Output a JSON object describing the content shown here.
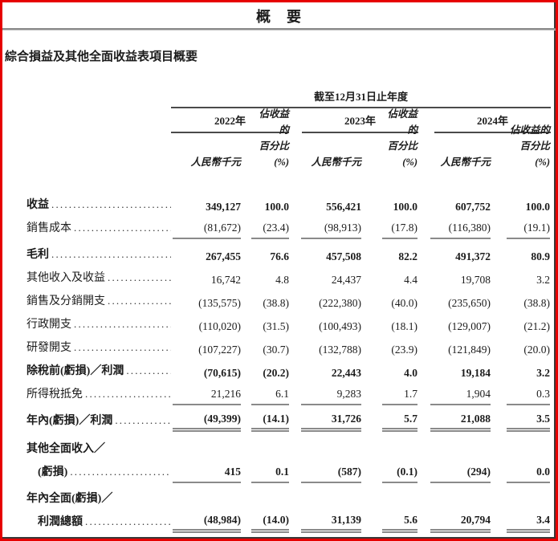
{
  "doc": {
    "title": "概　要",
    "section_heading": "綜合損益及其他全面收益表項目概要"
  },
  "table": {
    "period_header": "截至12月31日止年度",
    "years": [
      "2022年",
      "2023年",
      "2024年"
    ],
    "col_rmb": "人民幣千元",
    "col_pct_1": "佔收益的",
    "col_pct_2": "百分比(%)",
    "rows": [
      {
        "label": "收益",
        "bold": true,
        "rule": null,
        "values": [
          "349,127",
          "100.0",
          "556,421",
          "100.0",
          "607,752",
          "100.0"
        ]
      },
      {
        "label": "銷售成本",
        "bold": false,
        "rule": "single",
        "values": [
          "(81,672)",
          "(23.4)",
          "(98,913)",
          "(17.8)",
          "(116,380)",
          "(19.1)"
        ]
      },
      {
        "label": "毛利",
        "bold": true,
        "rule": null,
        "values": [
          "267,455",
          "76.6",
          "457,508",
          "82.2",
          "491,372",
          "80.9"
        ]
      },
      {
        "label": "其他收入及收益",
        "bold": false,
        "rule": null,
        "values": [
          "16,742",
          "4.8",
          "24,437",
          "4.4",
          "19,708",
          "3.2"
        ]
      },
      {
        "label": "銷售及分銷開支",
        "bold": false,
        "rule": null,
        "values": [
          "(135,575)",
          "(38.8)",
          "(222,380)",
          "(40.0)",
          "(235,650)",
          "(38.8)"
        ]
      },
      {
        "label": "行政開支",
        "bold": false,
        "rule": null,
        "values": [
          "(110,020)",
          "(31.5)",
          "(100,493)",
          "(18.1)",
          "(129,007)",
          "(21.2)"
        ]
      },
      {
        "label": "研發開支",
        "bold": false,
        "rule": null,
        "values": [
          "(107,227)",
          "(30.7)",
          "(132,788)",
          "(23.9)",
          "(121,849)",
          "(20.0)"
        ]
      },
      {
        "label": "除稅前(虧損)／利潤",
        "bold": true,
        "rule": null,
        "values": [
          "(70,615)",
          "(20.2)",
          "22,443",
          "4.0",
          "19,184",
          "3.2"
        ]
      },
      {
        "label": "所得稅抵免",
        "bold": false,
        "rule": "single",
        "values": [
          "21,216",
          "6.1",
          "9,283",
          "1.7",
          "1,904",
          "0.3"
        ]
      },
      {
        "label": "年內(虧損)／利潤",
        "bold": true,
        "rule": "double",
        "values": [
          "(49,399)",
          "(14.1)",
          "31,726",
          "5.7",
          "21,088",
          "3.5"
        ]
      },
      {
        "label": "其他全面收入／",
        "label2": "(虧損)",
        "bold": true,
        "rule": "single",
        "values": [
          "415",
          "0.1",
          "(587)",
          "(0.1)",
          "(294)",
          "0.0"
        ]
      },
      {
        "label": "年內全面(虧損)／",
        "label2": "利潤總額",
        "bold": true,
        "rule": "double",
        "values": [
          "(48,984)",
          "(14.0)",
          "31,139",
          "5.6",
          "20,794",
          "3.4"
        ]
      }
    ]
  }
}
